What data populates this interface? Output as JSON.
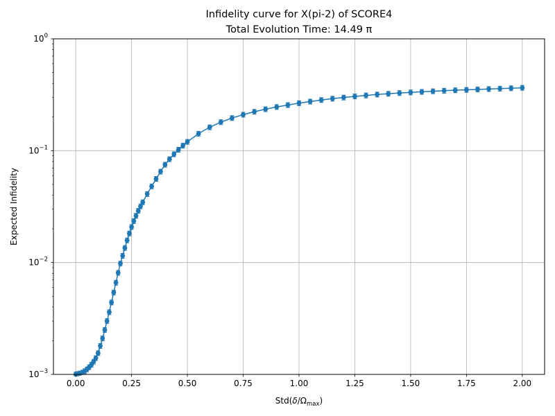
{
  "chart_data": {
    "type": "scatter",
    "title_line1": "Infidelity curve for X(pi-2) of SCORE4",
    "title_line2": "Total Evolution Time: 14.49 π",
    "xlabel_pre": "Std(",
    "xlabel_delta": "δ",
    "xlabel_slash": "/Ω",
    "xlabel_sub": "max",
    "xlabel_post": ")",
    "ylabel": "Expected Infidelity",
    "xlim": [
      -0.1,
      2.1
    ],
    "ylim": [
      0.001,
      1
    ],
    "yscale": "log",
    "grid": true,
    "color": "#1f77b4",
    "xticks": [
      0.0,
      0.25,
      0.5,
      0.75,
      1.0,
      1.25,
      1.5,
      1.75,
      2.0
    ],
    "xtick_labels": [
      "0.00",
      "0.25",
      "0.50",
      "0.75",
      "1.00",
      "1.25",
      "1.50",
      "1.75",
      "2.00"
    ],
    "yticks": [
      0.001,
      0.01,
      0.1,
      1
    ],
    "ytick_labels": [
      {
        "base": "10",
        "exp": "−3"
      },
      {
        "base": "10",
        "exp": "−2"
      },
      {
        "base": "10",
        "exp": "−1"
      },
      {
        "base": "10",
        "exp": "0"
      }
    ],
    "series": [
      {
        "x": [
          0.0,
          0.01,
          0.02,
          0.03,
          0.04,
          0.05,
          0.06,
          0.07,
          0.08,
          0.09,
          0.1,
          0.11,
          0.12,
          0.13,
          0.14,
          0.15,
          0.16,
          0.17,
          0.18,
          0.19,
          0.2,
          0.21,
          0.22,
          0.23,
          0.24,
          0.25,
          0.26,
          0.27,
          0.28,
          0.29,
          0.3,
          0.32,
          0.34,
          0.36,
          0.38,
          0.4,
          0.42,
          0.44,
          0.46,
          0.48,
          0.5,
          0.55,
          0.6,
          0.65,
          0.7,
          0.75,
          0.8,
          0.85,
          0.9,
          0.95,
          1.0,
          1.05,
          1.1,
          1.15,
          1.2,
          1.25,
          1.3,
          1.35,
          1.4,
          1.45,
          1.5,
          1.55,
          1.6,
          1.65,
          1.7,
          1.75,
          1.8,
          1.85,
          1.9,
          1.95,
          2.0
        ],
        "y": [
          0.001,
          0.00101,
          0.00102,
          0.00104,
          0.00107,
          0.00111,
          0.00116,
          0.00122,
          0.0013,
          0.0014,
          0.00155,
          0.0018,
          0.0021,
          0.0025,
          0.003,
          0.0036,
          0.0044,
          0.0054,
          0.0066,
          0.0081,
          0.0098,
          0.0115,
          0.0135,
          0.0158,
          0.0182,
          0.0208,
          0.0235,
          0.0262,
          0.029,
          0.0318,
          0.0346,
          0.041,
          0.048,
          0.056,
          0.065,
          0.075,
          0.084,
          0.093,
          0.102,
          0.111,
          0.12,
          0.142,
          0.162,
          0.18,
          0.196,
          0.21,
          0.223,
          0.235,
          0.246,
          0.256,
          0.266,
          0.275,
          0.284,
          0.292,
          0.299,
          0.306,
          0.312,
          0.318,
          0.323,
          0.328,
          0.332,
          0.336,
          0.34,
          0.344,
          0.347,
          0.35,
          0.353,
          0.356,
          0.359,
          0.362,
          0.365
        ]
      }
    ]
  }
}
